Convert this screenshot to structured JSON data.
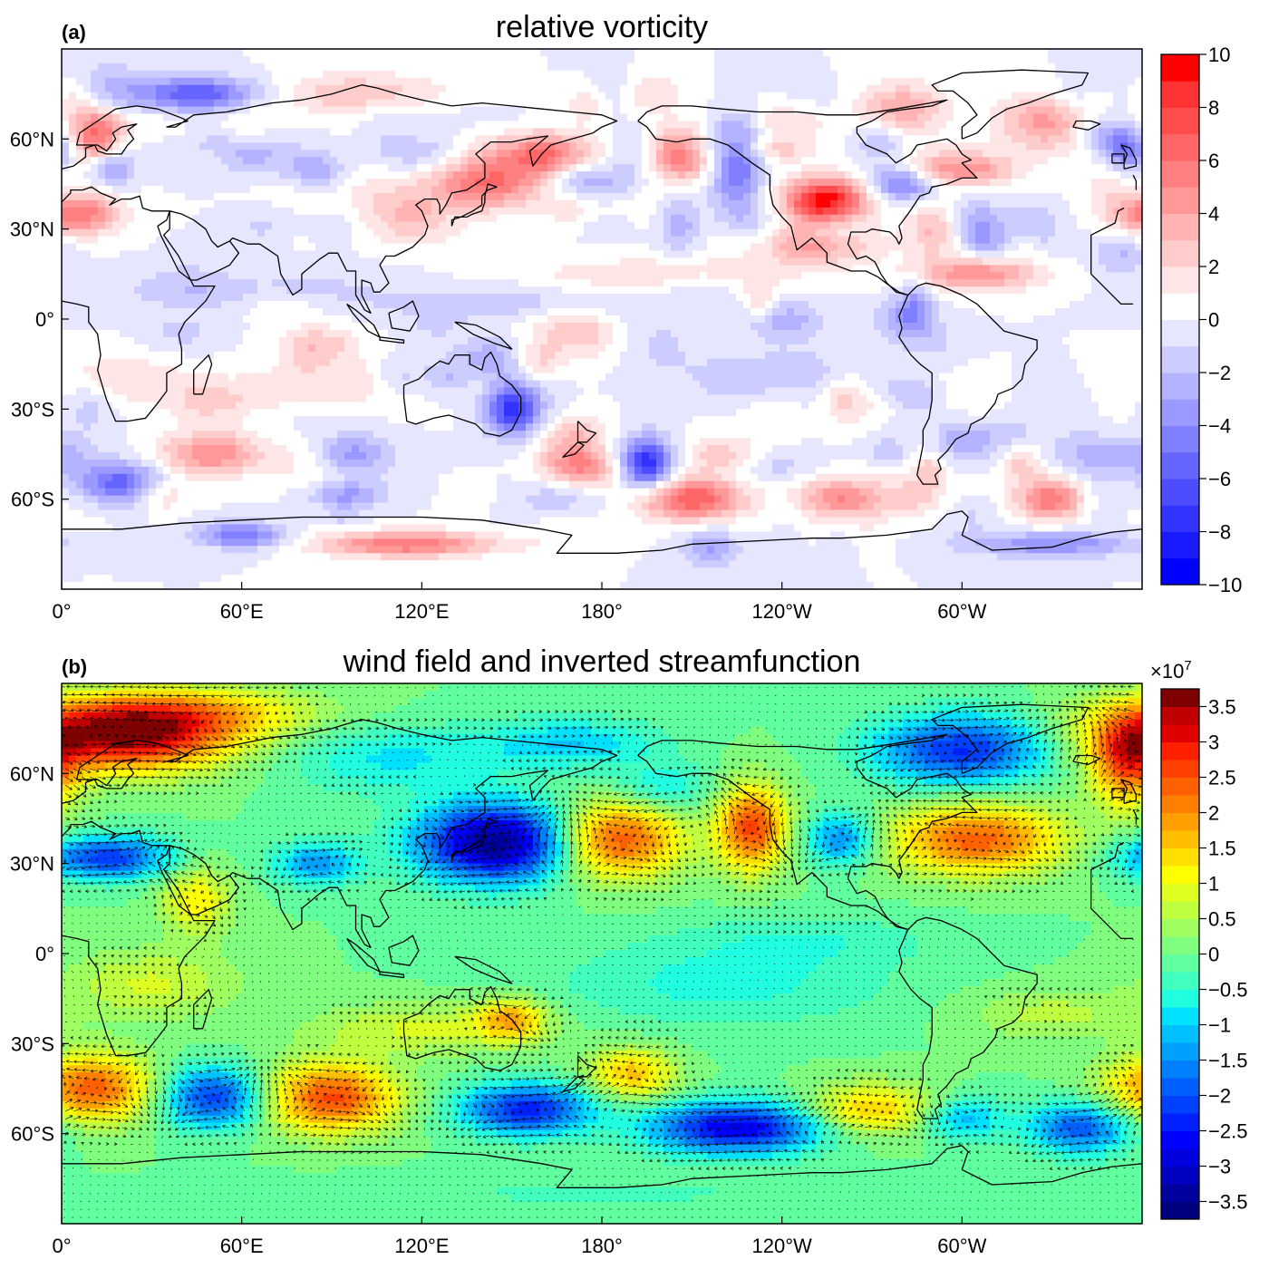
{
  "figure": {
    "panels": [
      {
        "id": "a",
        "label": "(a)",
        "title": "relative vorticity",
        "field": "vorticity",
        "colorbar": {
          "multiplier": "",
          "tick_values": [
            -10,
            -8,
            -6,
            -4,
            -2,
            0,
            2,
            4,
            6,
            8,
            10
          ],
          "tick_labels": [
            "−10",
            "−8",
            "−6",
            "−4",
            "−2",
            "0",
            "2",
            "4",
            "6",
            "8",
            "10"
          ],
          "range": [
            -10,
            10
          ],
          "n_levels": 20,
          "colors": [
            "#0000ff",
            "#1a1aff",
            "#3333ff",
            "#4d4dff",
            "#6666ff",
            "#8080ff",
            "#9999ff",
            "#b3b3ff",
            "#ccccff",
            "#e6e6ff",
            "#ffffff",
            "#ffe6e6",
            "#ffcccc",
            "#ffb3b3",
            "#ff9999",
            "#ff8080",
            "#ff6666",
            "#ff4d4d",
            "#ff3333",
            "#ff0000"
          ]
        }
      },
      {
        "id": "b",
        "label": "(b)",
        "title": "wind field and inverted streamfunction",
        "field": "streamfunction",
        "colorbar": {
          "multiplier": "×10",
          "multiplier_exp": "7",
          "tick_values": [
            -3.5,
            -3,
            -2.5,
            -2,
            -1.5,
            -1,
            -0.5,
            0,
            0.5,
            1,
            1.5,
            2,
            2.5,
            3,
            3.5
          ],
          "tick_labels": [
            "−3.5",
            "−3",
            "−2.5",
            "−2",
            "−1.5",
            "−1",
            "−0.5",
            "0",
            "0.5",
            "1",
            "1.5",
            "2",
            "2.5",
            "3",
            "3.5"
          ],
          "range": [
            -3.75,
            3.75
          ],
          "n_levels": 30,
          "colors": [
            "#00007f",
            "#00009f",
            "#0000bf",
            "#0000df",
            "#0000ff",
            "#0020ff",
            "#0040ff",
            "#0060ff",
            "#0080ff",
            "#00a0ff",
            "#00c0ff",
            "#00e0ff",
            "#20ffdf",
            "#40ffbf",
            "#60ff9f",
            "#80ff7f",
            "#9fff60",
            "#bfff40",
            "#dfff20",
            "#ffff00",
            "#ffdf00",
            "#ffbf00",
            "#ff9f00",
            "#ff8000",
            "#ff6000",
            "#ff4000",
            "#ff2000",
            "#df0000",
            "#bf0000",
            "#7f0000"
          ]
        }
      }
    ],
    "map_axes": {
      "lon_ticks": [
        {
          "lon": 0,
          "label": "0°"
        },
        {
          "lon": 60,
          "label": "60°E"
        },
        {
          "lon": 120,
          "label": "120°E"
        },
        {
          "lon": 180,
          "label": "180°"
        },
        {
          "lon": 240,
          "label": "120°W"
        },
        {
          "lon": 300,
          "label": "60°W"
        }
      ],
      "lat_ticks": [
        {
          "lat": 60,
          "label": "60°N"
        },
        {
          "lat": 30,
          "label": "30°N"
        },
        {
          "lat": 0,
          "label": "0°"
        },
        {
          "lat": -30,
          "label": "30°S"
        },
        {
          "lat": -60,
          "label": "60°S"
        }
      ],
      "lon_range": [
        0,
        360
      ],
      "lat_range": [
        -90,
        90
      ]
    }
  }
}
